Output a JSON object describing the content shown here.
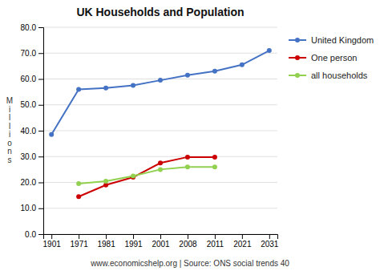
{
  "chart_data": {
    "type": "line",
    "title": "UK Households and Population",
    "ylabel": "M\ni\nl\nl\ni\no\nn\ns",
    "annotations": [
      "www.economicshelp.org | Source: ONS social trends 40"
    ],
    "categories": [
      "1901",
      "1971",
      "1981",
      "1991",
      "2001",
      "2008",
      "2011",
      "2021",
      "2031"
    ],
    "series": [
      {
        "name": "United Kingdom",
        "color": "#4472C4",
        "values": [
          38.5,
          56.0,
          56.5,
          57.5,
          59.5,
          61.5,
          63.0,
          65.5,
          71.0
        ]
      },
      {
        "name": "One person",
        "color": "#CC0000",
        "values": [
          null,
          14.5,
          19.0,
          22.0,
          27.5,
          29.8,
          29.8,
          null,
          null
        ]
      },
      {
        "name": "all households",
        "color": "#92D050",
        "values": [
          null,
          19.5,
          20.5,
          22.5,
          25.0,
          26.0,
          26.0,
          null,
          null
        ]
      }
    ],
    "ylim": [
      0.0,
      80.0
    ],
    "yticks": [
      {
        "value": 0.0,
        "label": "0.0"
      },
      {
        "value": 10.0,
        "label": "10.0"
      },
      {
        "value": 20.0,
        "label": "20.0"
      },
      {
        "value": 30.0,
        "label": "30.0"
      },
      {
        "value": 40.0,
        "label": "40.0"
      },
      {
        "value": 50.0,
        "label": "50.0"
      },
      {
        "value": 60.0,
        "label": "60.0"
      },
      {
        "value": 70.0,
        "label": "70.0"
      },
      {
        "value": 80.0,
        "label": "80.0"
      }
    ],
    "grid": true,
    "legend": "right",
    "marker": "circle"
  }
}
